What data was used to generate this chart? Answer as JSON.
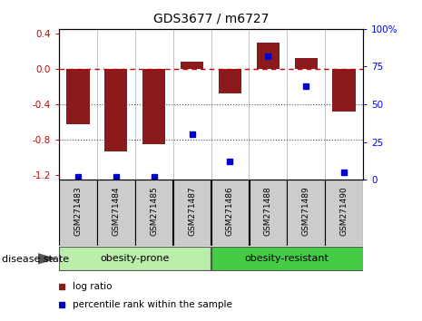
{
  "title": "GDS3677 / m6727",
  "samples": [
    "GSM271483",
    "GSM271484",
    "GSM271485",
    "GSM271487",
    "GSM271486",
    "GSM271488",
    "GSM271489",
    "GSM271490"
  ],
  "log_ratio": [
    -0.62,
    -0.93,
    -0.85,
    0.08,
    -0.28,
    0.3,
    0.12,
    -0.48
  ],
  "percentile_rank": [
    2,
    2,
    2,
    30,
    12,
    82,
    62,
    5
  ],
  "bar_color": "#8B1A1A",
  "dot_color": "#0000CC",
  "ylim_left": [
    -1.25,
    0.45
  ],
  "ylim_right": [
    0,
    100
  ],
  "y_ticks_left": [
    -1.2,
    -0.8,
    -0.4,
    0.0,
    0.4
  ],
  "y_ticks_right": [
    0,
    25,
    50,
    75,
    100
  ],
  "hline_color": "#CC0000",
  "dotted_line_color": "#555555",
  "plot_bg_color": "#ffffff",
  "sample_box_color": "#cccccc",
  "prone_color": "#bbeeaa",
  "resistant_color": "#44cc44",
  "disease_state_label": "disease state",
  "legend_log_ratio": "log ratio",
  "legend_percentile": "percentile rank within the sample",
  "n_prone": 4,
  "n_resistant": 4
}
